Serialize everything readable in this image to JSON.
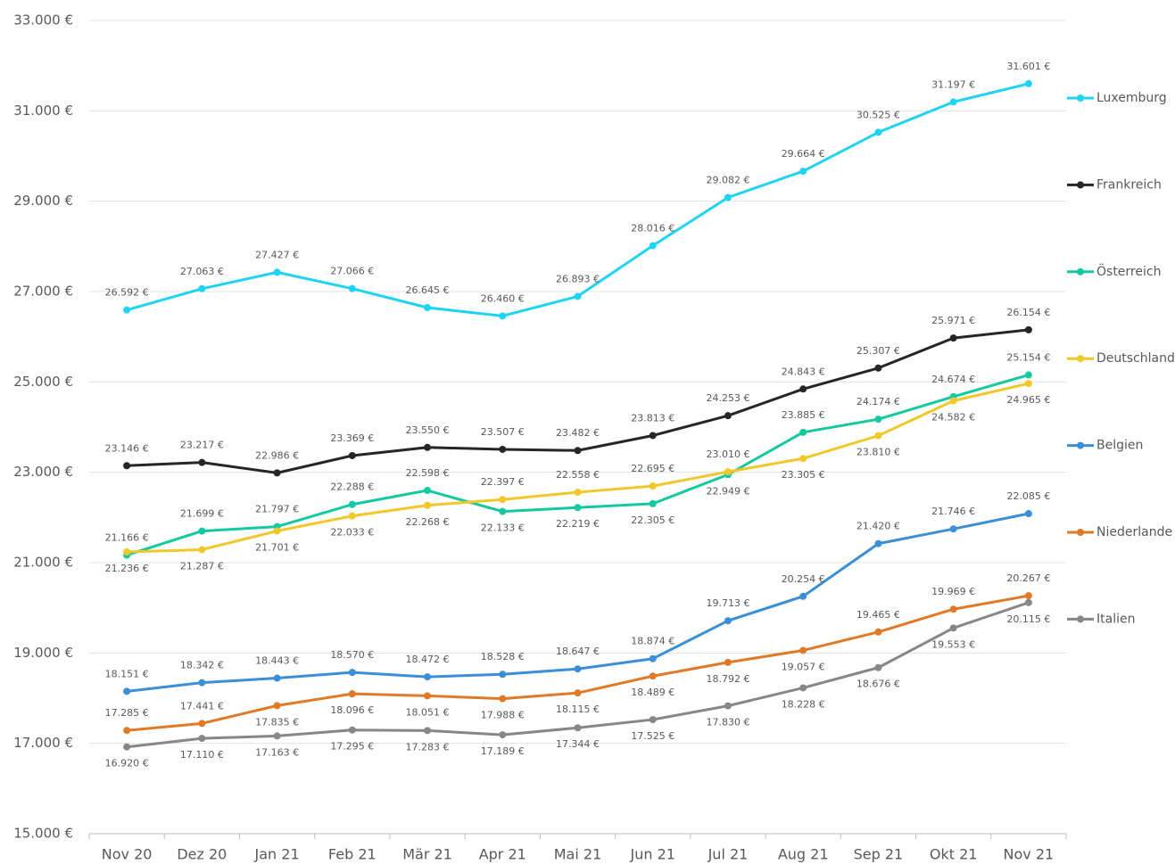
{
  "chart_data": {
    "type": "line",
    "categories": [
      "Nov 20",
      "Dez 20",
      "Jan 21",
      "Feb 21",
      "Mär 21",
      "Apr 21",
      "Mai 21",
      "Jun 21",
      "Jul 21",
      "Aug 21",
      "Sep 21",
      "Okt 21",
      "Nov 21"
    ],
    "ylim": [
      15000,
      33000
    ],
    "yticks": [
      {
        "value": 15000,
        "label": "15.000 €"
      },
      {
        "value": 17000,
        "label": "17.000 €"
      },
      {
        "value": 19000,
        "label": "19.000 €"
      },
      {
        "value": 21000,
        "label": "21.000 €"
      },
      {
        "value": 23000,
        "label": "23.000 €"
      },
      {
        "value": 25000,
        "label": "25.000 €"
      },
      {
        "value": 27000,
        "label": "27.000 €"
      },
      {
        "value": 29000,
        "label": "29.000 €"
      },
      {
        "value": 31000,
        "label": "31.000 €"
      },
      {
        "value": 33000,
        "label": "33.000 €"
      }
    ],
    "grid": true,
    "legend": "right",
    "series": [
      {
        "name": "Luxemburg",
        "color": "#1fd4f2",
        "values": [
          26592,
          27063,
          27427,
          27066,
          26645,
          26460,
          26893,
          28016,
          29082,
          29664,
          30525,
          31197,
          31601
        ],
        "value_labels": [
          "26.592 €",
          "27.063 €",
          "27.427 €",
          "27.066 €",
          "26.645 €",
          "26.460 €",
          "26.893 €",
          "28.016 €",
          "29.082 €",
          "29.664 €",
          "30.525 €",
          "31.197 €",
          "31.601 €"
        ]
      },
      {
        "name": "Frankreich",
        "color": "#262626",
        "values": [
          23146,
          23217,
          22986,
          23369,
          23550,
          23507,
          23482,
          23813,
          24253,
          24843,
          25307,
          25971,
          26154
        ],
        "value_labels": [
          "23.146 €",
          "23.217 €",
          "22.986 €",
          "23.369 €",
          "23.550 €",
          "23.507 €",
          "23.482 €",
          "23.813 €",
          "24.253 €",
          "24.843 €",
          "25.307 €",
          "25.971 €",
          "26.154 €"
        ]
      },
      {
        "name": "Österreich",
        "color": "#14c9a0",
        "values": [
          21166,
          21699,
          21797,
          22288,
          22598,
          22133,
          22219,
          22305,
          22949,
          23885,
          24174,
          24674,
          25154
        ],
        "value_labels": [
          "21.166 €",
          "21.699 €",
          "21.797 €",
          "22.288 €",
          "22.598 €",
          "22.133 €",
          "22.219 €",
          "22.305 €",
          "22.949 €",
          "23.885 €",
          "24.174 €",
          "24.674 €",
          "25.154 €"
        ]
      },
      {
        "name": "Deutschland",
        "color": "#f1c82a",
        "values": [
          21236,
          21287,
          21701,
          22033,
          22268,
          22397,
          22558,
          22695,
          23010,
          23305,
          23810,
          24582,
          24965
        ],
        "value_labels": [
          "21.236 €",
          "21.287 €",
          "21.701 €",
          "22.033 €",
          "22.268 €",
          "22.397 €",
          "22.558 €",
          "22.695 €",
          "23.010 €",
          "23.305 €",
          "23.810 €",
          "24.582 €",
          "24.965 €"
        ]
      },
      {
        "name": "Belgien",
        "color": "#3a8fd6",
        "values": [
          18151,
          18342,
          18443,
          18570,
          18472,
          18528,
          18647,
          18874,
          19713,
          20254,
          21420,
          21746,
          22085
        ],
        "value_labels": [
          "18.151 €",
          "18.342 €",
          "18.443 €",
          "18.570 €",
          "18.472 €",
          "18.528 €",
          "18.647 €",
          "18.874 €",
          "19.713 €",
          "20.254 €",
          "21.420 €",
          "21.746 €",
          "22.085 €"
        ]
      },
      {
        "name": "Niederlande",
        "color": "#e07a28",
        "values": [
          17285,
          17441,
          17835,
          18096,
          18051,
          17988,
          18115,
          18489,
          18792,
          19057,
          19465,
          19969,
          20267
        ],
        "value_labels": [
          "17.285 €",
          "17.441 €",
          "17.835 €",
          "18.096 €",
          "18.051 €",
          "17.988 €",
          "18.115 €",
          "18.489 €",
          "18.792 €",
          "19.057 €",
          "19.465 €",
          "19.969 €",
          "20.267 €"
        ]
      },
      {
        "name": "Italien",
        "color": "#878787",
        "values": [
          16920,
          17110,
          17163,
          17295,
          17283,
          17189,
          17344,
          17525,
          17830,
          18228,
          18676,
          19553,
          20115
        ],
        "value_labels": [
          "16.920 €",
          "17.110 €",
          "17.163 €",
          "17.295 €",
          "17.283 €",
          "17.189 €",
          "17.344 €",
          "17.525 €",
          "17.830 €",
          "18.228 €",
          "18.676 €",
          "19.553 €",
          "20.115 €"
        ]
      }
    ]
  }
}
